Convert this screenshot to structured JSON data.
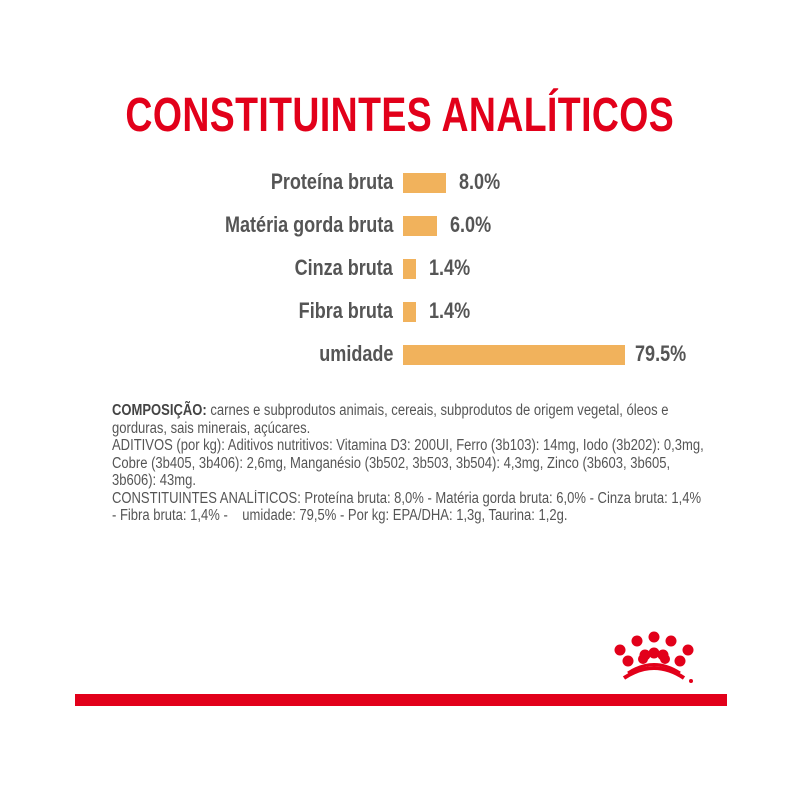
{
  "chart_data": {
    "type": "bar",
    "title": "CONSTITUINTES ANALÍTICOS",
    "categories": [
      "Proteína bruta",
      "Matéria gorda bruta",
      "Cinza bruta",
      "Fibra bruta",
      "umidade"
    ],
    "values": [
      8.0,
      6.0,
      1.4,
      1.4,
      79.5
    ],
    "value_labels": [
      "8.0%",
      "6.0%",
      "1.4%",
      "1.4%",
      "79.5%"
    ],
    "xlabel": "",
    "ylabel": "",
    "bar_color": "#f1b25c"
  },
  "composition": {
    "heading": "COMPOSIÇÃO:",
    "text": " carnes e subprodutos animais, cereais, subprodutos de origem vegetal, óleos e gorduras, sais minerais, açúcares.",
    "additives": "ADITIVOS (por kg): Aditivos nutritivos: Vitamina D3: 200UI, Ferro (3b103): 14mg, Iodo (3b202): 0,3mg, Cobre (3b405, 3b406): 2,6mg, Manganésio (3b502, 3b503, 3b504): 4,3mg, Zinco (3b603, 3b605, 3b606): 43mg.",
    "analytical": "CONSTITUINTES ANALÍTICOS: Proteína bruta: 8,0% - Matéria gorda bruta: 6,0% - Cinza bruta: 1,4% - Fibra bruta: 1,4% -    umidade: 79,5% - Por kg: EPA/DHA: 1,3g, Taurina: 1,2g."
  },
  "colors": {
    "brand": "#e2001a",
    "text": "#555555"
  },
  "logo": {
    "icon": "royal-canin-crown-icon"
  }
}
